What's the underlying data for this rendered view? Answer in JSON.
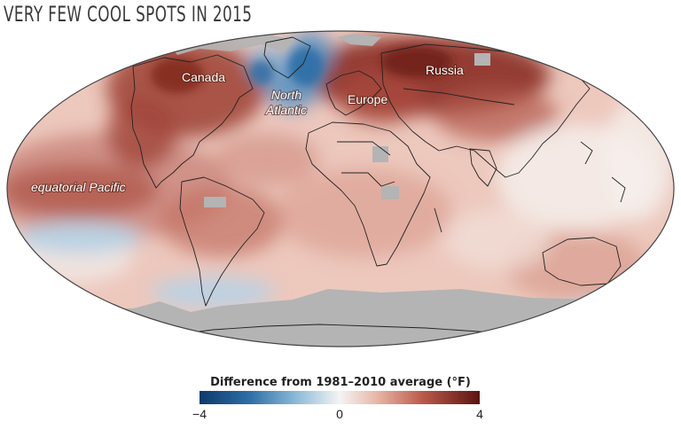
{
  "title": "VERY FEW COOL SPOTS IN 2015",
  "labels": {
    "canada": "Canada",
    "north_atlantic_1": "North",
    "north_atlantic_2": "Atlantic",
    "russia": "Russia",
    "europe": "Europe",
    "pacific": "equatorial Pacific"
  },
  "legend": {
    "title": "Difference from 1981–2010 average (°F)",
    "min_label": "−4",
    "mid_label": "0",
    "max_label": "4",
    "colors": {
      "cold": "#0d3a6b",
      "neutral": "#f4f4f4",
      "warm": "#5a1410",
      "land_no_data": "#b4b4b4"
    }
  }
}
